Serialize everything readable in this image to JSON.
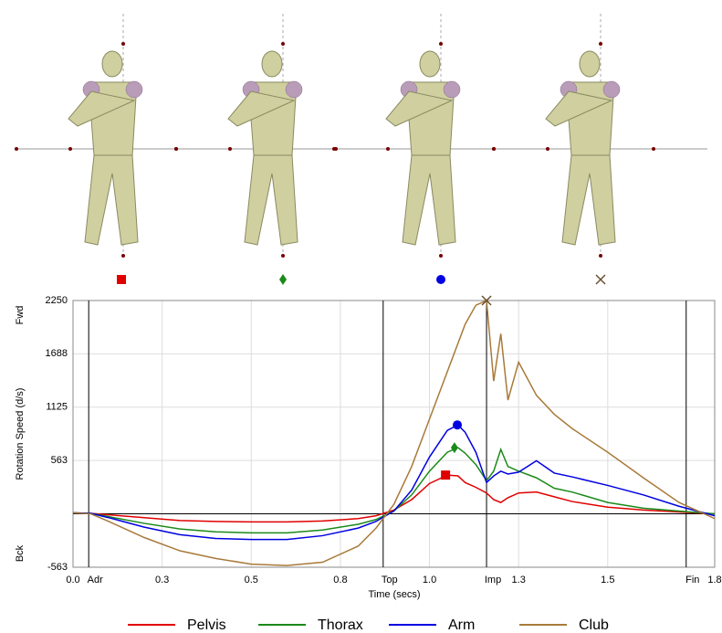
{
  "chart_data": {
    "type": "line",
    "y_label": "Rotation Speed (d/s)",
    "x_label": "Time (secs)",
    "y_top_label": "Fwd",
    "y_bottom_label": "Bck",
    "xlim": [
      0,
      1.8
    ],
    "ylim": [
      -563,
      2250
    ],
    "xticks": [
      {
        "value": 0,
        "label": "0.0"
      },
      {
        "value": 0.25,
        "label": "0.3"
      },
      {
        "value": 0.5,
        "label": "0.5"
      },
      {
        "value": 0.75,
        "label": "0.8"
      },
      {
        "value": 1.0,
        "label": "1.0"
      },
      {
        "value": 1.25,
        "label": "1.3"
      },
      {
        "value": 1.5,
        "label": "1.5"
      },
      {
        "value": 1.8,
        "label": "1.8"
      }
    ],
    "yticks": [
      -563,
      563,
      1125,
      1688,
      2250
    ],
    "grid": true,
    "events": [
      {
        "label": "Adr",
        "x": 0.044
      },
      {
        "label": "Top",
        "x": 0.87
      },
      {
        "label": "Imp",
        "x": 1.16
      },
      {
        "label": "Fin",
        "x": 1.72
      }
    ],
    "x": [
      0,
      0.05,
      0.1,
      0.2,
      0.3,
      0.4,
      0.5,
      0.6,
      0.7,
      0.8,
      0.85,
      0.9,
      0.95,
      1.0,
      1.05,
      1.08,
      1.1,
      1.13,
      1.16,
      1.18,
      1.2,
      1.22,
      1.25,
      1.3,
      1.35,
      1.4,
      1.5,
      1.6,
      1.7,
      1.8
    ],
    "series": [
      {
        "name": "Pelvis",
        "color": "#e00000",
        "marker": "square",
        "peak": {
          "x": 1.045,
          "y": 409
        },
        "values": [
          10,
          5,
          -10,
          -40,
          -70,
          -80,
          -85,
          -85,
          -75,
          -50,
          -20,
          40,
          150,
          320,
          409,
          400,
          330,
          280,
          220,
          150,
          120,
          170,
          220,
          230,
          180,
          130,
          70,
          40,
          20,
          0
        ]
      },
      {
        "name": "Thorax",
        "color": "#1a8a1a",
        "marker": "diamond",
        "peak": {
          "x": 1.07,
          "y": 698
        },
        "values": [
          10,
          5,
          -30,
          -100,
          -160,
          -190,
          -200,
          -200,
          -170,
          -110,
          -60,
          30,
          200,
          450,
          650,
          698,
          640,
          520,
          350,
          450,
          680,
          500,
          450,
          380,
          270,
          230,
          120,
          60,
          30,
          0
        ]
      },
      {
        "name": "Arm",
        "color": "#0000e0",
        "marker": "circle",
        "peak": {
          "x": 1.078,
          "y": 938
        },
        "values": [
          10,
          5,
          -40,
          -140,
          -220,
          -260,
          -270,
          -270,
          -230,
          -150,
          -80,
          30,
          250,
          600,
          880,
          938,
          860,
          650,
          330,
          400,
          450,
          420,
          440,
          560,
          430,
          390,
          300,
          200,
          80,
          -20
        ]
      },
      {
        "name": "Club",
        "color": "#a87a3a",
        "marker": "x",
        "peak": {
          "x": 1.16,
          "y": 2250
        },
        "values": [
          10,
          0,
          -80,
          -250,
          -390,
          -470,
          -530,
          -545,
          -510,
          -340,
          -150,
          100,
          500,
          1000,
          1500,
          1800,
          2000,
          2200,
          2250,
          1400,
          1900,
          1200,
          1600,
          1250,
          1050,
          900,
          650,
          380,
          120,
          -50
        ]
      }
    ]
  }
}
